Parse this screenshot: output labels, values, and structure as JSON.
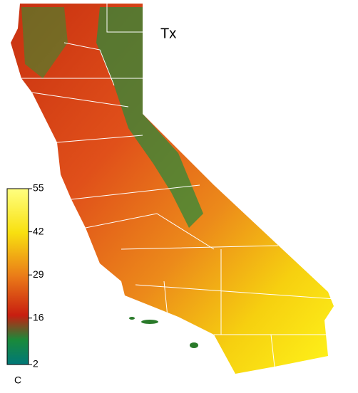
{
  "map": {
    "title": "Tx",
    "colorbar": {
      "unit": "C",
      "ticks": [
        55,
        42,
        29,
        16,
        2
      ]
    }
  }
}
